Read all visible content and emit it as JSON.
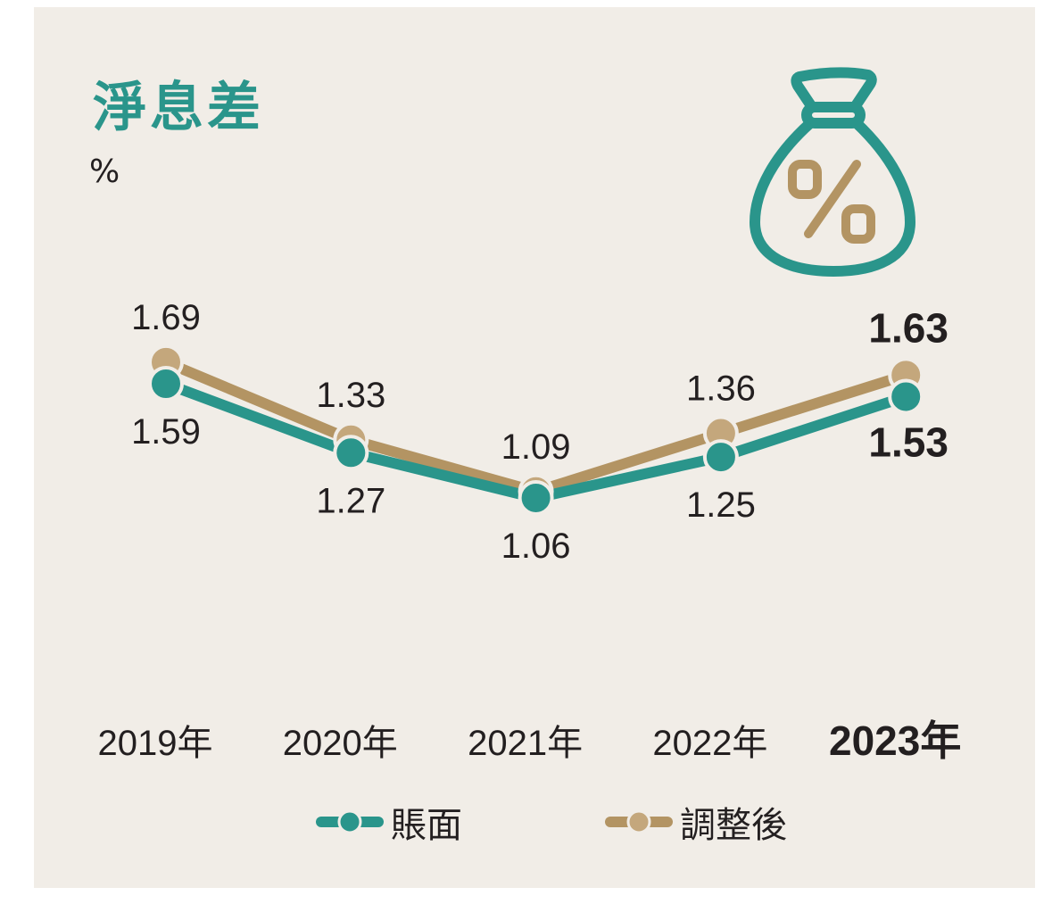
{
  "header": {
    "title": "淨息差",
    "unit": "%"
  },
  "icon": "money-bag-percent-icon",
  "colors": {
    "book": "#2a958b",
    "adjusted_line": "#b39463",
    "adjusted_dot": "#c4a77c",
    "background": "#f1ede7"
  },
  "chart_data": {
    "type": "line",
    "title": "淨息差",
    "ylabel": "%",
    "categories": [
      "2019年",
      "2020年",
      "2021年",
      "2022年",
      "2023年"
    ],
    "highlight_category": "2023年",
    "series": [
      {
        "name": "賬面",
        "values": [
          1.59,
          1.27,
          1.06,
          1.25,
          1.53
        ],
        "labels": [
          "1.59",
          "1.27",
          "1.06",
          "1.25",
          "1.53"
        ]
      },
      {
        "name": "調整後",
        "values": [
          1.69,
          1.33,
          1.09,
          1.36,
          1.63
        ],
        "labels": [
          "1.69",
          "1.33",
          "1.09",
          "1.36",
          "1.63"
        ]
      }
    ],
    "legend": {
      "placement": "bottom",
      "items": [
        "賬面",
        "調整後"
      ]
    },
    "grid": false
  }
}
